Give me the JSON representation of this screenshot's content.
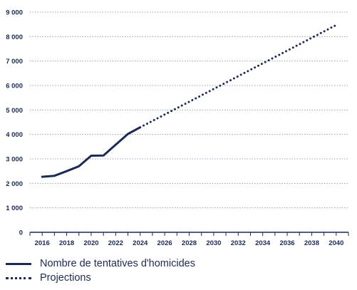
{
  "chart_data": {
    "type": "line",
    "x": [
      2016,
      2017,
      2018,
      2019,
      2020,
      2021,
      2022,
      2023,
      2024,
      2025,
      2026,
      2027,
      2028,
      2029,
      2030,
      2031,
      2032,
      2033,
      2034,
      2035,
      2036,
      2037,
      2038,
      2039,
      2040
    ],
    "series": [
      {
        "name": "Nombre de tentatives d'homicides",
        "style": "solid",
        "x": [
          2016,
          2017,
          2018,
          2019,
          2020,
          2021,
          2022,
          2023,
          2024
        ],
        "values": [
          2270,
          2310,
          2500,
          2700,
          3130,
          3140,
          3580,
          4020,
          4290
        ]
      },
      {
        "name": "Projections",
        "style": "dotted",
        "x": [
          2024,
          2040
        ],
        "values": [
          4290,
          8470
        ]
      }
    ],
    "xticks": [
      "2016",
      "2018",
      "2020",
      "2022",
      "2024",
      "2026",
      "2028",
      "2030",
      "2032",
      "2034",
      "2036",
      "2038",
      "2040"
    ],
    "yticks": [
      "0",
      "1 000",
      "2 000",
      "3 000",
      "4 000",
      "5 000",
      "6 000",
      "7 000",
      "8 000",
      "9 000"
    ],
    "xlim": [
      2015,
      2041
    ],
    "ylim": [
      0,
      9000
    ],
    "grid": "horizontal-dotted",
    "legend_position": "bottom-left",
    "colors": {
      "line": "#1c2a56",
      "grid": "#9aa3b8"
    }
  },
  "legend": {
    "items": [
      {
        "label": "Nombre de tentatives d'homicides",
        "style": "solid"
      },
      {
        "label": "Projections",
        "style": "dotted"
      }
    ]
  }
}
